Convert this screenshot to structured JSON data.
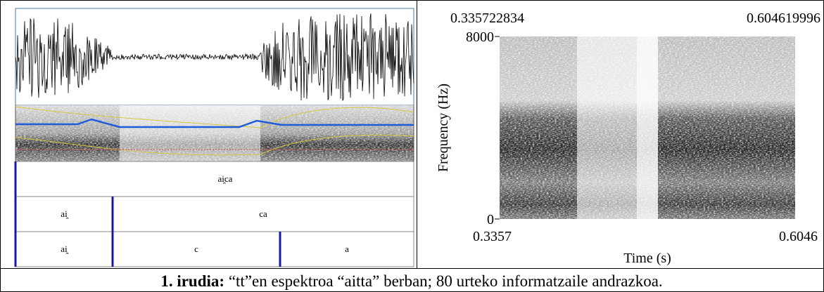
{
  "left_panel": {
    "tiers": [
      [
        "ai̯ca"
      ],
      [
        "ai̯",
        "ca"
      ],
      [
        "ai̯",
        "c",
        "a"
      ]
    ]
  },
  "right_panel": {
    "top_left": "0.335722834",
    "top_right": "0.604619996",
    "y_top": "8000",
    "y_bottom": "0",
    "y_label": "Frequency (Hz)",
    "x_left": "0.3357",
    "x_right": "0.6046",
    "x_label": "Time (s)"
  },
  "caption": {
    "label": "1. irudia:",
    "text": " “tt”en espektroa “aitta” berban; 80 urteko informatzaile andrazkoa."
  }
}
